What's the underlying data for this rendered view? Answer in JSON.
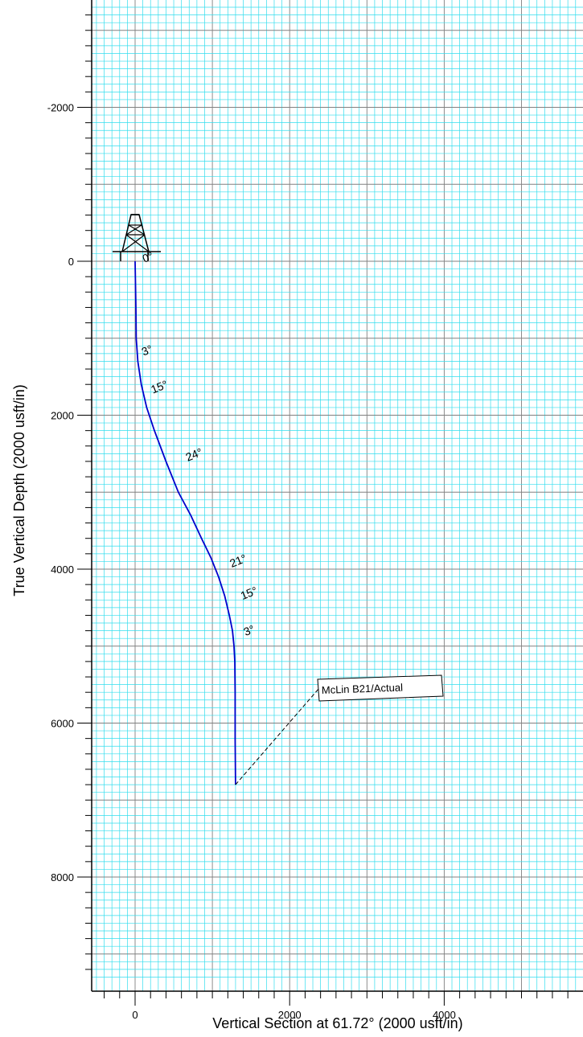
{
  "chart_data": {
    "type": "line",
    "title": "",
    "xlabel": "Vertical Section at 61.72° (2000 usft/in)",
    "ylabel": "True Vertical Depth (2000 usft/in)",
    "xlim": [
      -600,
      5800
    ],
    "ylim": [
      -3350,
      9300
    ],
    "y_inverted": true,
    "grid": true,
    "x_ticks": [
      0,
      2000,
      4000
    ],
    "x_tick_labels": [
      "0",
      "2000",
      "4000"
    ],
    "y_ticks": [
      -2000,
      0,
      2000,
      4000,
      6000,
      8000
    ],
    "y_tick_labels": [
      "-2000",
      "0",
      "2000",
      "4000",
      "6000",
      "8000"
    ],
    "series": [
      {
        "x": [
          0,
          5,
          10,
          15,
          35,
          80,
          150,
          250,
          400,
          560,
          720,
          860,
          980,
          1080,
          1160,
          1220,
          1260,
          1280,
          1290,
          1295,
          1295,
          1300
        ],
        "y": [
          0,
          300,
          600,
          1000,
          1300,
          1600,
          1900,
          2200,
          2600,
          3000,
          3300,
          3600,
          3850,
          4100,
          4350,
          4600,
          4800,
          5000,
          5200,
          5600,
          6200,
          6800
        ]
      }
    ],
    "annotations": [
      {
        "text": "0°",
        "x": 120,
        "y": 20
      },
      {
        "text": "3°",
        "x": 110,
        "y": 1230
      },
      {
        "text": "15°",
        "x": 230,
        "y": 1720
      },
      {
        "text": "24°",
        "x": 680,
        "y": 2600
      },
      {
        "text": "21°",
        "x": 1250,
        "y": 3980
      },
      {
        "text": "15°",
        "x": 1390,
        "y": 4400
      },
      {
        "text": "3°",
        "x": 1430,
        "y": 4870
      }
    ],
    "well_label": "McLin B21/Actual",
    "rig_icon": "drilling-rig-icon",
    "colors": {
      "grid_minor": "#33ddee",
      "grid_major": "#808080",
      "trajectory": "#0000cc"
    }
  }
}
